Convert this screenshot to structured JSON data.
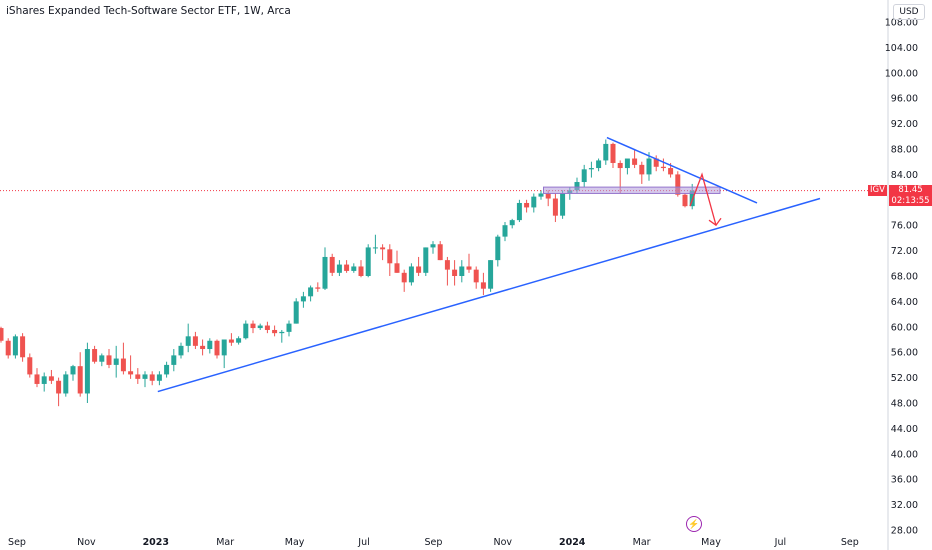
{
  "header": {
    "title": "iShares Expanded Tech-Software Sector ETF, 1W, Arca"
  },
  "axis": {
    "currency": "USD"
  },
  "last_price": {
    "symbol": "IGV",
    "price": "81.45",
    "countdown": "02:13:55"
  },
  "colors": {
    "up": "#26a69a",
    "down": "#ef5350",
    "trend": "#2962ff",
    "arrow": "#f23645",
    "zone": "#b39ddb"
  },
  "icons": {
    "events": "lightning-icon"
  },
  "chart_data": {
    "type": "candlestick",
    "interval": "1W",
    "ylim": [
      28,
      108
    ],
    "yticks": [
      "108.00",
      "104.00",
      "100.00",
      "96.00",
      "92.00",
      "88.00",
      "84.00",
      "80.00",
      "76.00",
      "72.00",
      "68.00",
      "64.00",
      "60.00",
      "56.00",
      "52.00",
      "48.00",
      "44.00",
      "40.00",
      "36.00",
      "32.00",
      "28.00"
    ],
    "xlabels": [
      {
        "label": "Sep",
        "date": "2022-09"
      },
      {
        "label": "Nov",
        "date": "2022-11"
      },
      {
        "label": "2023",
        "date": "2023-01"
      },
      {
        "label": "Mar",
        "date": "2023-03"
      },
      {
        "label": "May",
        "date": "2023-05"
      },
      {
        "label": "Jul",
        "date": "2023-07"
      },
      {
        "label": "Sep",
        "date": "2023-09"
      },
      {
        "label": "Nov",
        "date": "2023-11"
      },
      {
        "label": "2024",
        "date": "2024-01"
      },
      {
        "label": "Mar",
        "date": "2024-03"
      },
      {
        "label": "May",
        "date": "2024-05"
      },
      {
        "label": "Jul",
        "date": "2024-07"
      },
      {
        "label": "Sep",
        "date": "2024-09"
      }
    ],
    "candles": [
      [
        59.8,
        60.0,
        57.5,
        57.8
      ],
      [
        57.8,
        58.2,
        55.0,
        55.5
      ],
      [
        55.5,
        58.8,
        55.0,
        58.5
      ],
      [
        58.5,
        59.0,
        54.5,
        55.2
      ],
      [
        55.2,
        55.8,
        52.0,
        52.5
      ],
      [
        52.5,
        53.5,
        50.5,
        51.0
      ],
      [
        51.0,
        52.8,
        49.8,
        52.2
      ],
      [
        52.2,
        53.2,
        51.0,
        51.5
      ],
      [
        51.5,
        52.0,
        47.5,
        49.5
      ],
      [
        49.5,
        53.0,
        49.0,
        52.5
      ],
      [
        52.5,
        54.0,
        51.5,
        53.8
      ],
      [
        53.8,
        56.0,
        49.0,
        49.5
      ],
      [
        49.5,
        57.5,
        48.0,
        56.5
      ],
      [
        56.5,
        57.0,
        54.2,
        54.5
      ],
      [
        54.5,
        55.8,
        53.8,
        55.5
      ],
      [
        55.5,
        56.5,
        53.5,
        54.0
      ],
      [
        54.0,
        57.0,
        52.0,
        55.0
      ],
      [
        55.0,
        57.5,
        52.5,
        53.0
      ],
      [
        53.0,
        55.5,
        51.8,
        52.5
      ],
      [
        52.5,
        53.5,
        51.0,
        51.8
      ],
      [
        51.8,
        53.0,
        50.5,
        52.5
      ],
      [
        52.5,
        53.0,
        50.8,
        51.5
      ],
      [
        51.5,
        53.0,
        50.8,
        52.5
      ],
      [
        52.5,
        54.5,
        52.0,
        54.0
      ],
      [
        54.0,
        56.5,
        53.0,
        55.5
      ],
      [
        55.5,
        57.5,
        55.0,
        57.0
      ],
      [
        57.0,
        60.5,
        56.0,
        58.5
      ],
      [
        58.5,
        59.2,
        56.5,
        57.0
      ],
      [
        57.0,
        58.0,
        55.5,
        56.5
      ],
      [
        56.5,
        58.2,
        55.8,
        57.8
      ],
      [
        57.8,
        58.0,
        55.0,
        55.5
      ],
      [
        55.5,
        58.0,
        53.5,
        58.0
      ],
      [
        58.0,
        59.0,
        57.0,
        57.5
      ],
      [
        57.5,
        58.5,
        57.2,
        58.2
      ],
      [
        58.2,
        61.0,
        58.0,
        60.5
      ],
      [
        60.5,
        61.0,
        59.0,
        59.8
      ],
      [
        59.8,
        60.5,
        59.5,
        60.2
      ],
      [
        60.2,
        60.8,
        59.0,
        59.5
      ],
      [
        59.5,
        60.2,
        58.5,
        59.0
      ],
      [
        59.0,
        59.5,
        57.5,
        59.2
      ],
      [
        59.2,
        61.0,
        58.5,
        60.5
      ],
      [
        60.5,
        64.5,
        60.5,
        64.0
      ],
      [
        64.0,
        65.5,
        63.0,
        64.8
      ],
      [
        64.8,
        66.5,
        64.0,
        66.2
      ],
      [
        66.2,
        67.0,
        65.5,
        66.0
      ],
      [
        66.0,
        72.5,
        65.8,
        71.0
      ],
      [
        71.0,
        71.5,
        68.0,
        68.5
      ],
      [
        68.5,
        70.5,
        68.0,
        69.8
      ],
      [
        69.8,
        70.5,
        68.5,
        68.8
      ],
      [
        68.8,
        70.0,
        68.5,
        69.5
      ],
      [
        69.5,
        70.5,
        67.8,
        68.0
      ],
      [
        68.0,
        73.0,
        67.8,
        72.5
      ],
      [
        72.5,
        74.5,
        71.5,
        72.5
      ],
      [
        72.5,
        73.0,
        70.5,
        72.2
      ],
      [
        72.2,
        73.0,
        68.0,
        70.0
      ],
      [
        70.0,
        72.0,
        68.5,
        68.5
      ],
      [
        68.5,
        69.0,
        65.5,
        67.0
      ],
      [
        67.0,
        70.0,
        66.5,
        69.5
      ],
      [
        69.5,
        71.0,
        68.0,
        68.5
      ],
      [
        68.5,
        72.5,
        68.0,
        72.5
      ],
      [
        72.5,
        73.5,
        71.5,
        73.0
      ],
      [
        73.0,
        73.5,
        70.5,
        70.5
      ],
      [
        70.5,
        71.0,
        66.5,
        69.0
      ],
      [
        69.0,
        70.5,
        66.5,
        68.0
      ],
      [
        68.0,
        70.5,
        67.0,
        69.5
      ],
      [
        69.5,
        71.5,
        68.5,
        69.0
      ],
      [
        69.0,
        69.5,
        66.0,
        67.0
      ],
      [
        67.0,
        68.5,
        65.0,
        66.0
      ],
      [
        66.0,
        70.5,
        65.5,
        70.5
      ],
      [
        70.5,
        74.5,
        69.5,
        74.2
      ],
      [
        74.2,
        76.5,
        73.5,
        76.0
      ],
      [
        76.0,
        77.0,
        75.5,
        76.8
      ],
      [
        76.8,
        80.0,
        76.5,
        79.5
      ],
      [
        79.5,
        80.0,
        78.0,
        78.8
      ],
      [
        78.8,
        81.0,
        78.0,
        80.5
      ],
      [
        80.5,
        81.5,
        80.0,
        81.0
      ],
      [
        81.0,
        81.5,
        79.0,
        80.2
      ],
      [
        80.2,
        81.0,
        76.5,
        77.5
      ],
      [
        77.5,
        81.5,
        77.0,
        81.0
      ],
      [
        81.0,
        82.0,
        80.0,
        81.5
      ],
      [
        81.5,
        83.5,
        81.0,
        82.8
      ],
      [
        82.8,
        85.5,
        82.0,
        84.8
      ],
      [
        84.8,
        86.0,
        83.5,
        85.0
      ],
      [
        85.0,
        86.5,
        84.5,
        86.2
      ],
      [
        86.2,
        89.5,
        85.5,
        88.8
      ],
      [
        88.8,
        89.0,
        85.0,
        85.8
      ],
      [
        85.8,
        86.2,
        81.0,
        85.0
      ],
      [
        85.0,
        86.0,
        84.0,
        86.5
      ],
      [
        86.5,
        88.0,
        85.0,
        85.5
      ],
      [
        85.5,
        86.0,
        82.5,
        84.0
      ],
      [
        84.0,
        87.5,
        83.0,
        86.5
      ],
      [
        86.5,
        87.0,
        84.5,
        85.2
      ],
      [
        85.2,
        86.5,
        84.5,
        85.0
      ],
      [
        85.0,
        85.8,
        83.5,
        84.0
      ],
      [
        84.0,
        84.5,
        80.5,
        80.8
      ],
      [
        80.8,
        81.0,
        78.8,
        79.0
      ],
      [
        79.0,
        82.5,
        78.5,
        81.45
      ]
    ],
    "drawings": {
      "support_trendline": {
        "from": {
          "date": "2023-01",
          "price": 49.8
        },
        "to": {
          "date": "2024-09",
          "price": 80.2
        }
      },
      "resistance_trendline": {
        "from": {
          "date": "2024-02",
          "price": 89.8
        },
        "to": {
          "date": "2024-06",
          "price": 79.5
        }
      },
      "zone": {
        "from": "2023-12",
        "to": "2024-05",
        "top": 82.0,
        "bottom": 81.0
      },
      "projection_arrow": [
        {
          "date": "2024-04",
          "price": 79.0
        },
        {
          "date": "2024-05",
          "price": 84.0
        },
        {
          "date": "2024-05",
          "price": 76.0
        }
      ],
      "last_price_line": 81.45
    }
  }
}
